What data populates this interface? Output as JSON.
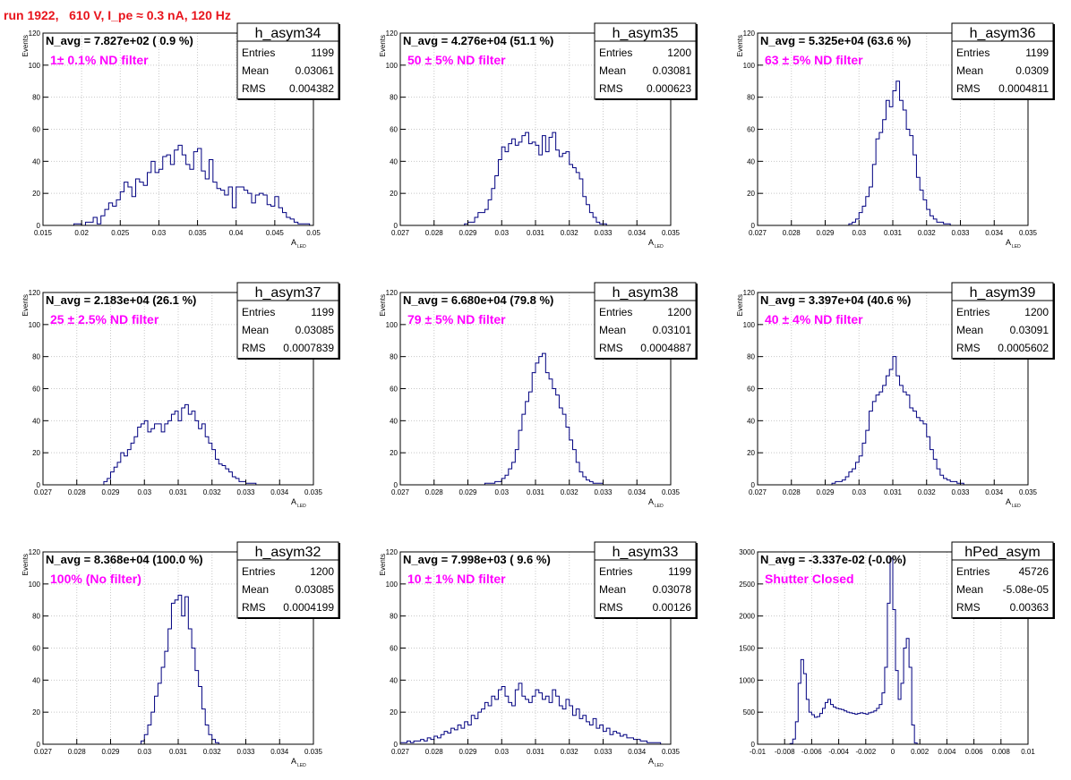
{
  "page": {
    "title": "run 1922,   610 V, I_pe ≈ 0.3 nA, 120 Hz"
  },
  "colors": {
    "histogram_line": "#000080",
    "annotation_magenta": "#ff00ff",
    "title_red": "#e8141c",
    "grid": "#c8c8c8",
    "frame": "#000000"
  },
  "chart_data": [
    {
      "type": "histogram",
      "name": "h_asym34",
      "navg_text": "N_avg = 7.827e+02 ( 0.9 %)",
      "annotation": "1± 0.1% ND filter",
      "stats": [
        {
          "label": "Entries",
          "value": "1199"
        },
        {
          "label": "Mean",
          "value": "0.03061"
        },
        {
          "label": "RMS",
          "value": "0.004382"
        }
      ],
      "ylabel": "Events",
      "xlabel": "A",
      "xlabel_sub": "LED",
      "xlim": [
        0.015,
        0.05
      ],
      "ylim": [
        0,
        120
      ],
      "xticks": [
        "0.015",
        "0.02",
        "0.025",
        "0.03",
        "0.035",
        "0.04",
        "0.045",
        "0.05"
      ],
      "yticks": [
        "0",
        "20",
        "40",
        "60",
        "80",
        "100",
        "120"
      ],
      "grid": true,
      "x_start": 0.019,
      "bin_width": 0.0005,
      "counts": [
        1,
        1,
        0,
        2,
        2,
        5,
        1,
        6,
        10,
        14,
        12,
        16,
        21,
        27,
        24,
        18,
        29,
        27,
        25,
        33,
        40,
        33,
        35,
        43,
        44,
        38,
        47,
        50,
        44,
        38,
        35,
        46,
        48,
        34,
        29,
        41,
        27,
        23,
        22,
        19,
        24,
        11,
        24,
        24,
        22,
        20,
        14,
        19,
        20,
        19,
        13,
        12,
        18,
        11,
        8,
        5,
        4,
        2,
        1,
        1,
        1
      ]
    },
    {
      "type": "histogram",
      "name": "h_asym35",
      "navg_text": "N_avg = 4.276e+04 (51.1 %)",
      "annotation": "50 ± 5% ND filter",
      "stats": [
        {
          "label": "Entries",
          "value": "1200"
        },
        {
          "label": "Mean",
          "value": "0.03081"
        },
        {
          "label": "RMS",
          "value": "0.000623"
        }
      ],
      "ylabel": "Events",
      "xlabel": "A",
      "xlabel_sub": "LED",
      "xlim": [
        0.027,
        0.035
      ],
      "ylim": [
        0,
        120
      ],
      "xticks": [
        "0.027",
        "0.028",
        "0.029",
        "0.03",
        "0.031",
        "0.032",
        "0.033",
        "0.034",
        "0.035"
      ],
      "yticks": [
        "0",
        "20",
        "40",
        "60",
        "80",
        "100",
        "120"
      ],
      "grid": true,
      "x_start": 0.0289,
      "bin_width": 0.0001,
      "counts": [
        1,
        2,
        2,
        5,
        8,
        8,
        10,
        16,
        23,
        31,
        41,
        49,
        46,
        51,
        54,
        50,
        52,
        56,
        58,
        51,
        52,
        50,
        44,
        56,
        46,
        55,
        58,
        47,
        43,
        45,
        46,
        38,
        36,
        33,
        29,
        18,
        13,
        8,
        5,
        2,
        1,
        1
      ]
    },
    {
      "type": "histogram",
      "name": "h_asym36",
      "navg_text": "N_avg = 5.325e+04 (63.6 %)",
      "annotation": "63 ± 5% ND filter",
      "stats": [
        {
          "label": "Entries",
          "value": "1199"
        },
        {
          "label": "Mean",
          "value": "0.0309"
        },
        {
          "label": "RMS",
          "value": "0.0004811"
        }
      ],
      "ylabel": "Events",
      "xlabel": "A",
      "xlabel_sub": "LED",
      "xlim": [
        0.027,
        0.035
      ],
      "ylim": [
        0,
        120
      ],
      "xticks": [
        "0.027",
        "0.028",
        "0.029",
        "0.03",
        "0.031",
        "0.032",
        "0.033",
        "0.034",
        "0.035"
      ],
      "yticks": [
        "0",
        "20",
        "40",
        "60",
        "80",
        "100",
        "120"
      ],
      "grid": true,
      "x_start": 0.0297,
      "bin_width": 0.0001,
      "counts": [
        1,
        2,
        4,
        8,
        12,
        18,
        24,
        38,
        54,
        58,
        66,
        78,
        74,
        84,
        90,
        78,
        72,
        60,
        56,
        44,
        30,
        22,
        16,
        10,
        6,
        4,
        2,
        2,
        1,
        1
      ]
    },
    {
      "type": "histogram",
      "name": "h_asym37",
      "navg_text": "N_avg = 2.183e+04 (26.1 %)",
      "annotation": "25 ± 2.5% ND filter",
      "stats": [
        {
          "label": "Entries",
          "value": "1199"
        },
        {
          "label": "Mean",
          "value": "0.03085"
        },
        {
          "label": "RMS",
          "value": "0.0007839"
        }
      ],
      "ylabel": "Events",
      "xlabel": "A",
      "xlabel_sub": "LED",
      "xlim": [
        0.027,
        0.035
      ],
      "ylim": [
        0,
        120
      ],
      "xticks": [
        "0.027",
        "0.028",
        "0.029",
        "0.03",
        "0.031",
        "0.032",
        "0.033",
        "0.034",
        "0.035"
      ],
      "yticks": [
        "0",
        "20",
        "40",
        "60",
        "80",
        "100",
        "120"
      ],
      "grid": true,
      "x_start": 0.0288,
      "bin_width": 0.0001,
      "counts": [
        2,
        4,
        8,
        11,
        14,
        20,
        18,
        22,
        26,
        30,
        36,
        38,
        40,
        33,
        35,
        38,
        38,
        33,
        38,
        40,
        44,
        46,
        40,
        48,
        50,
        44,
        46,
        40,
        35,
        38,
        30,
        26,
        22,
        16,
        13,
        12,
        10,
        8,
        5,
        4,
        2,
        2,
        1,
        1,
        1
      ]
    },
    {
      "type": "histogram",
      "name": "h_asym38",
      "navg_text": "N_avg = 6.680e+04 (79.8 %)",
      "annotation": "79 ± 5% ND filter",
      "stats": [
        {
          "label": "Entries",
          "value": "1200"
        },
        {
          "label": "Mean",
          "value": "0.03101"
        },
        {
          "label": "RMS",
          "value": "0.0004887"
        }
      ],
      "ylabel": "Events",
      "xlabel": "A",
      "xlabel_sub": "LED",
      "xlim": [
        0.027,
        0.035
      ],
      "ylim": [
        0,
        120
      ],
      "xticks": [
        "0.027",
        "0.028",
        "0.029",
        "0.03",
        "0.031",
        "0.032",
        "0.033",
        "0.034",
        "0.035"
      ],
      "yticks": [
        "0",
        "20",
        "40",
        "60",
        "80",
        "100",
        "120"
      ],
      "grid": true,
      "x_start": 0.0295,
      "bin_width": 0.0001,
      "counts": [
        1,
        1,
        1,
        2,
        2,
        4,
        6,
        10,
        14,
        22,
        34,
        44,
        52,
        58,
        70,
        76,
        80,
        82,
        70,
        66,
        60,
        56,
        48,
        44,
        36,
        28,
        22,
        14,
        8,
        5,
        3,
        2,
        1,
        1,
        1
      ]
    },
    {
      "type": "histogram",
      "name": "h_asym39",
      "navg_text": "N_avg = 3.397e+04 (40.6 %)",
      "annotation": "40 ± 4% ND filter",
      "stats": [
        {
          "label": "Entries",
          "value": "1200"
        },
        {
          "label": "Mean",
          "value": "0.03091"
        },
        {
          "label": "RMS",
          "value": "0.0005602"
        }
      ],
      "ylabel": "Events",
      "xlabel": "A",
      "xlabel_sub": "LED",
      "xlim": [
        0.027,
        0.035
      ],
      "ylim": [
        0,
        120
      ],
      "xticks": [
        "0.027",
        "0.028",
        "0.029",
        "0.03",
        "0.031",
        "0.032",
        "0.033",
        "0.034",
        "0.035"
      ],
      "yticks": [
        "0",
        "20",
        "40",
        "60",
        "80",
        "100",
        "120"
      ],
      "grid": true,
      "x_start": 0.0292,
      "bin_width": 0.0001,
      "counts": [
        1,
        2,
        2,
        3,
        5,
        8,
        10,
        14,
        18,
        26,
        34,
        46,
        52,
        56,
        58,
        62,
        68,
        72,
        80,
        68,
        62,
        58,
        56,
        48,
        46,
        42,
        40,
        38,
        30,
        22,
        16,
        10,
        6,
        4,
        3,
        2,
        2,
        1,
        1
      ]
    },
    {
      "type": "histogram",
      "name": "h_asym32",
      "navg_text": "N_avg = 8.368e+04 (100.0 %)",
      "annotation": "100% (No filter)",
      "stats": [
        {
          "label": "Entries",
          "value": "1200"
        },
        {
          "label": "Mean",
          "value": "0.03085"
        },
        {
          "label": "RMS",
          "value": "0.0004199"
        }
      ],
      "ylabel": "Events",
      "xlabel": "A",
      "xlabel_sub": "LED",
      "xlim": [
        0.027,
        0.035
      ],
      "ylim": [
        0,
        120
      ],
      "xticks": [
        "0.027",
        "0.028",
        "0.029",
        "0.03",
        "0.031",
        "0.032",
        "0.033",
        "0.034",
        "0.035"
      ],
      "yticks": [
        "0",
        "20",
        "40",
        "60",
        "80",
        "100",
        "120"
      ],
      "grid": true,
      "x_start": 0.0299,
      "bin_width": 0.0001,
      "counts": [
        2,
        6,
        12,
        20,
        30,
        38,
        48,
        58,
        72,
        88,
        90,
        93,
        80,
        92,
        72,
        60,
        46,
        36,
        22,
        12,
        6,
        3,
        1
      ]
    },
    {
      "type": "histogram",
      "name": "h_asym33",
      "navg_text": "N_avg = 7.998e+03 ( 9.6 %)",
      "annotation": "10 ± 1% ND filter",
      "stats": [
        {
          "label": "Entries",
          "value": "1199"
        },
        {
          "label": "Mean",
          "value": "0.03078"
        },
        {
          "label": "RMS",
          "value": "0.00126"
        }
      ],
      "ylabel": "Events",
      "xlabel": "A",
      "xlabel_sub": "LED",
      "xlim": [
        0.027,
        0.035
      ],
      "ylim": [
        0,
        120
      ],
      "xticks": [
        "0.027",
        "0.028",
        "0.029",
        "0.03",
        "0.031",
        "0.032",
        "0.033",
        "0.034",
        "0.035"
      ],
      "yticks": [
        "0",
        "20",
        "40",
        "60",
        "80",
        "100",
        "120"
      ],
      "grid": true,
      "x_start": 0.027,
      "bin_width": 0.0001,
      "counts": [
        1,
        1,
        2,
        1,
        2,
        2,
        3,
        2,
        4,
        3,
        5,
        4,
        6,
        8,
        7,
        10,
        9,
        12,
        10,
        14,
        12,
        18,
        16,
        20,
        22,
        26,
        24,
        30,
        28,
        34,
        36,
        30,
        26,
        24,
        34,
        38,
        30,
        28,
        26,
        30,
        34,
        32,
        28,
        30,
        26,
        34,
        30,
        24,
        22,
        28,
        24,
        18,
        22,
        16,
        18,
        14,
        12,
        16,
        10,
        12,
        8,
        10,
        6,
        8,
        7,
        5,
        6,
        4,
        4,
        3,
        3,
        2,
        2,
        1,
        1,
        1,
        1
      ]
    },
    {
      "type": "histogram",
      "name": "hPed_asym",
      "navg_text": "N_avg = -3.337e-02 (-0.0%)",
      "annotation": "Shutter Closed",
      "stats": [
        {
          "label": "Entries",
          "value": "45726"
        },
        {
          "label": "Mean",
          "value": "-5.08e-05"
        },
        {
          "label": "RMS",
          "value": "0.00363"
        }
      ],
      "ylabel": "",
      "xlabel": "",
      "xlabel_sub": "",
      "xlim": [
        -0.01,
        0.01
      ],
      "ylim": [
        0,
        3000
      ],
      "xticks": [
        "-0.01",
        "-0.008",
        "-0.006",
        "-0.004",
        "-0.002",
        "0",
        "0.002",
        "0.004",
        "0.006",
        "0.008",
        "0.01"
      ],
      "yticks": [
        "0",
        "500",
        "1000",
        "1500",
        "2000",
        "2500",
        "3000"
      ],
      "grid": true,
      "x_start": -0.0076,
      "bin_width": 0.0002,
      "counts": [
        10,
        80,
        350,
        950,
        1320,
        1100,
        700,
        500,
        460,
        420,
        430,
        480,
        560,
        650,
        700,
        620,
        580,
        560,
        550,
        540,
        520,
        500,
        490,
        480,
        470,
        480,
        490,
        480,
        470,
        490,
        500,
        520,
        560,
        620,
        800,
        1200,
        2200,
        2900,
        2100,
        1150,
        700,
        950,
        1500,
        1650,
        1200,
        300,
        20
      ]
    }
  ]
}
